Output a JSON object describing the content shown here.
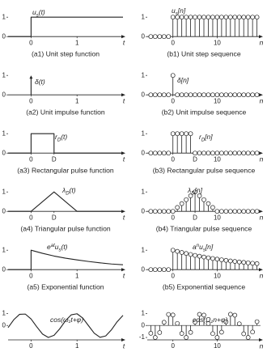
{
  "chart_data": [
    {
      "type": "line",
      "caption": "(a1) Unit step function",
      "xlabel": "t",
      "annotation": [
        {
          "text": "u"
        },
        {
          "text": "s",
          "style": "sub"
        },
        {
          "text": "(t)"
        }
      ],
      "x": [
        -0.5,
        0,
        0,
        2.0
      ],
      "values": [
        0,
        0,
        1,
        1
      ],
      "xlim": [
        -0.5,
        2.0
      ],
      "ylim": [
        -0.45,
        1.55
      ],
      "xticks": [
        0,
        1
      ],
      "yticks": [
        0,
        1
      ],
      "color": "#222"
    },
    {
      "type": "stem",
      "caption": "(b1) Unit step sequence",
      "xlabel": "n",
      "annotation": [
        {
          "text": "u"
        },
        {
          "text": "s",
          "style": "sub"
        },
        {
          "text": "[n]"
        }
      ],
      "x": [
        -5,
        -4,
        -3,
        -2,
        -1,
        0,
        1,
        2,
        3,
        4,
        5,
        6,
        7,
        8,
        9,
        10,
        11,
        12,
        13,
        14,
        15,
        16,
        17,
        18,
        19
      ],
      "values": [
        0,
        0,
        0,
        0,
        0,
        1,
        1,
        1,
        1,
        1,
        1,
        1,
        1,
        1,
        1,
        1,
        1,
        1,
        1,
        1,
        1,
        1,
        1,
        1,
        1
      ],
      "xlim": [
        -5.8,
        19.8
      ],
      "ylim": [
        -0.45,
        1.55
      ],
      "xticks": [
        0,
        10
      ],
      "yticks": [
        0,
        1
      ],
      "color": "#222"
    },
    {
      "type": "impulse",
      "caption": "(a2) Unit impulse function",
      "xlabel": "t",
      "annotation": [
        {
          "text": "δ(t)"
        }
      ],
      "x": [
        0
      ],
      "values": [
        1
      ],
      "xlim": [
        -0.5,
        2.0
      ],
      "ylim": [
        -0.45,
        1.55
      ],
      "xticks": [
        0,
        1
      ],
      "yticks": [
        0,
        1
      ],
      "color": "#222"
    },
    {
      "type": "stem",
      "caption": "(b2) Unit impulse sequence",
      "xlabel": "n",
      "annotation": [
        {
          "text": "δ[n]"
        }
      ],
      "x": [
        -5,
        -4,
        -3,
        -2,
        -1,
        0,
        1,
        2,
        3,
        4,
        5,
        6,
        7,
        8,
        9,
        10,
        11,
        12,
        13,
        14,
        15,
        16,
        17,
        18,
        19
      ],
      "values": [
        0,
        0,
        0,
        0,
        0,
        1,
        0,
        0,
        0,
        0,
        0,
        0,
        0,
        0,
        0,
        0,
        0,
        0,
        0,
        0,
        0,
        0,
        0,
        0,
        0
      ],
      "xlim": [
        -5.8,
        19.8
      ],
      "ylim": [
        -0.45,
        1.55
      ],
      "xticks": [
        0,
        10
      ],
      "yticks": [
        0,
        1
      ],
      "color": "#222"
    },
    {
      "type": "line",
      "caption": "(a3) Rectangular pulse function",
      "xlabel": "t",
      "annotation": [
        {
          "text": "r"
        },
        {
          "text": "D",
          "style": "sub"
        },
        {
          "text": "(t)"
        }
      ],
      "x": [
        -0.5,
        0,
        0,
        0.5,
        0.5,
        2.0
      ],
      "values": [
        0,
        0,
        1,
        1,
        0,
        0
      ],
      "xlim": [
        -0.5,
        2.0
      ],
      "ylim": [
        -0.45,
        1.55
      ],
      "xticks": [
        0,
        {
          "value": 0.5,
          "label": "D"
        }
      ],
      "yticks": [
        0,
        1
      ],
      "color": "#222"
    },
    {
      "type": "stem",
      "caption": "(b3) Rectangular pulse sequence",
      "xlabel": "n",
      "annotation": [
        {
          "text": "r"
        },
        {
          "text": "D",
          "style": "sub"
        },
        {
          "text": "[n]"
        }
      ],
      "x": [
        -5,
        -4,
        -3,
        -2,
        -1,
        0,
        1,
        2,
        3,
        4,
        5,
        6,
        7,
        8,
        9,
        10,
        11,
        12,
        13,
        14,
        15,
        16,
        17,
        18,
        19
      ],
      "values": [
        0,
        0,
        0,
        0,
        0,
        1,
        1,
        1,
        1,
        1,
        0,
        0,
        0,
        0,
        0,
        0,
        0,
        0,
        0,
        0,
        0,
        0,
        0,
        0,
        0
      ],
      "xlim": [
        -5.8,
        19.8
      ],
      "ylim": [
        -0.45,
        1.55
      ],
      "xticks": [
        0,
        {
          "value": 5,
          "label": "D"
        },
        10
      ],
      "yticks": [
        0,
        1
      ],
      "color": "#222"
    },
    {
      "type": "line",
      "caption": "(a4) Triangular pulse function",
      "xlabel": "t",
      "annotation": [
        {
          "text": "λ"
        },
        {
          "text": "D",
          "style": "sub"
        },
        {
          "text": "(t)"
        }
      ],
      "x": [
        -0.5,
        0,
        0.5,
        1,
        2.0
      ],
      "values": [
        0,
        0,
        1,
        0,
        0
      ],
      "xlim": [
        -0.5,
        2.0
      ],
      "ylim": [
        -0.45,
        1.55
      ],
      "xticks": [
        0,
        {
          "value": 0.5,
          "label": "D"
        }
      ],
      "yticks": [
        0,
        1
      ],
      "color": "#222"
    },
    {
      "type": "stem",
      "caption": "(b4) Triangular pulse sequence",
      "xlabel": "n",
      "annotation": [
        {
          "text": "λ"
        },
        {
          "text": "D",
          "style": "sub"
        },
        {
          "text": "[n]"
        }
      ],
      "x": [
        -5,
        -4,
        -3,
        -2,
        -1,
        0,
        1,
        2,
        3,
        4,
        5,
        6,
        7,
        8,
        9,
        10,
        11,
        12,
        13,
        14,
        15,
        16,
        17,
        18,
        19
      ],
      "values": [
        0,
        0,
        0,
        0,
        0,
        0,
        0.2,
        0.4,
        0.6,
        0.8,
        1,
        0.8,
        0.6,
        0.4,
        0.2,
        0,
        0,
        0,
        0,
        0,
        0,
        0,
        0,
        0,
        0
      ],
      "xlim": [
        -5.8,
        19.8
      ],
      "ylim": [
        -0.45,
        1.55
      ],
      "xticks": [
        0,
        {
          "value": 5,
          "label": "D"
        },
        10
      ],
      "yticks": [
        0,
        1
      ],
      "color": "#222"
    },
    {
      "type": "line",
      "caption": "(a5) Exponential function",
      "xlabel": "t",
      "annotation": [
        {
          "text": "e"
        },
        {
          "text": "at",
          "style": "sup"
        },
        {
          "text": "u"
        },
        {
          "text": "s",
          "style": "sub"
        },
        {
          "text": "(t)"
        }
      ],
      "x": [
        -0.5,
        0,
        0,
        0.25,
        0.5,
        0.75,
        1,
        1.25,
        1.5,
        1.75,
        2.0
      ],
      "values": [
        0,
        0,
        1,
        0.84,
        0.7,
        0.59,
        0.5,
        0.42,
        0.35,
        0.29,
        0.25
      ],
      "xlim": [
        -0.5,
        2.0
      ],
      "ylim": [
        -0.45,
        1.55
      ],
      "xticks": [
        0,
        1
      ],
      "yticks": [
        0,
        1
      ],
      "color": "#222"
    },
    {
      "type": "stem",
      "caption": "(b5) Exponential sequence",
      "xlabel": "n",
      "annotation": [
        {
          "text": "a"
        },
        {
          "text": "n",
          "style": "sup"
        },
        {
          "text": "u"
        },
        {
          "text": "s",
          "style": "sub"
        },
        {
          "text": "[n]"
        }
      ],
      "x": [
        -5,
        -4,
        -3,
        -2,
        -1,
        0,
        1,
        2,
        3,
        4,
        5,
        6,
        7,
        8,
        9,
        10,
        11,
        12,
        13,
        14,
        15,
        16,
        17,
        18,
        19
      ],
      "values": [
        0,
        0,
        0,
        0,
        0,
        1,
        0.94,
        0.884,
        0.831,
        0.781,
        0.734,
        0.69,
        0.648,
        0.61,
        0.573,
        0.539,
        0.506,
        0.476,
        0.447,
        0.421,
        0.395,
        0.372,
        0.349,
        0.328,
        0.309
      ],
      "xlim": [
        -5.8,
        19.8
      ],
      "ylim": [
        -0.45,
        1.55
      ],
      "xticks": [
        0,
        10
      ],
      "yticks": [
        0,
        1
      ],
      "color": "#222"
    },
    {
      "type": "line",
      "xlabel": "t",
      "annotation": [
        {
          "text": "cos(ω₁t+φ)"
        }
      ],
      "x_axis": "bottom",
      "x": [
        -0.5,
        -0.375,
        -0.25,
        -0.125,
        0,
        0.125,
        0.25,
        0.375,
        0.5,
        0.625,
        0.75,
        0.875,
        1,
        1.125,
        1.25,
        1.375,
        1.5,
        1.625,
        1.75,
        1.875,
        2.0
      ],
      "values": [
        -0.178,
        0.487,
        0.93,
        0.952,
        0.54,
        -0.117,
        -0.72,
        -0.998,
        -0.821,
        -0.272,
        0.401,
        0.89,
        0.977,
        0.618,
        -0.019,
        -0.649,
        -0.986,
        -0.872,
        -0.355,
        0.321,
        0.844
      ],
      "xlim": [
        -0.5,
        2.0
      ],
      "ylim": [
        -1.2,
        1.5
      ],
      "xticks": [
        0,
        1
      ],
      "yticks": [
        0,
        1
      ],
      "color": "#222",
      "smooth": true
    },
    {
      "type": "stem",
      "xlabel": "n",
      "annotation": [
        {
          "text": "cos(Ω₁n+φ)"
        }
      ],
      "x_axis": "bottom",
      "x": [
        -5,
        -4,
        -3,
        -2,
        -1,
        0,
        1,
        2,
        3,
        4,
        5,
        6,
        7,
        8,
        9,
        10,
        11,
        12,
        13,
        14,
        15,
        16,
        17,
        18,
        19
      ],
      "values": [
        -0.654,
        -0.999,
        -0.589,
        0.267,
        0.921,
        0.878,
        0.17,
        -0.666,
        -0.998,
        -0.575,
        0.284,
        0.927,
        0.869,
        0.153,
        -0.68,
        -0.997,
        -0.56,
        0.3,
        0.934,
        0.86,
        0.137,
        -0.693,
        -0.996,
        -0.545,
        0.316
      ],
      "xlim": [
        -5.8,
        19.8
      ],
      "ylim": [
        -1.2,
        1.5
      ],
      "xticks": [
        0,
        10
      ],
      "yticks": [
        -1,
        0,
        1
      ],
      "color": "#222"
    }
  ]
}
